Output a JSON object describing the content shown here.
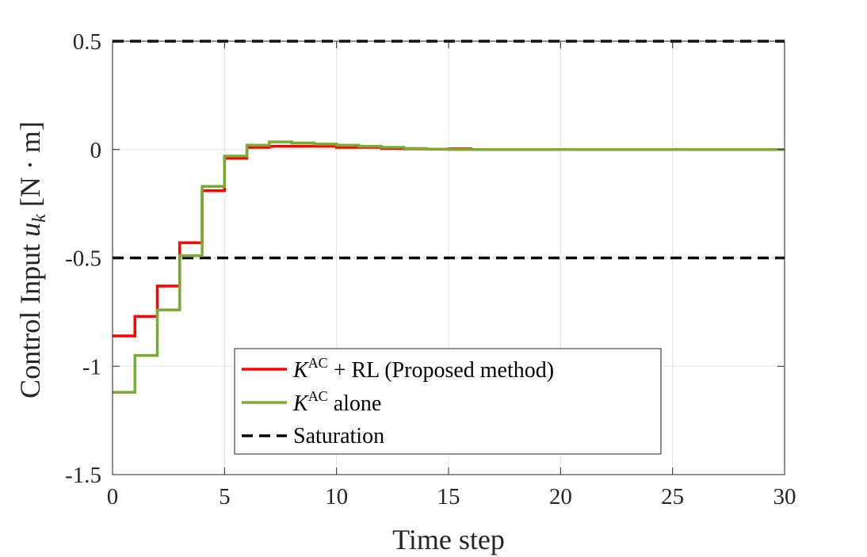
{
  "chart_data": {
    "type": "line",
    "line_shape": "step",
    "xlabel": "Time step",
    "ylabel": {
      "prefix": "Control Input ",
      "symbol": "u",
      "subscript": "k",
      "unit": " [N · m]"
    },
    "xlim": [
      0,
      30
    ],
    "ylim": [
      -1.5,
      0.5
    ],
    "x_ticks": [
      0,
      5,
      10,
      15,
      20,
      25,
      30
    ],
    "x_tick_labels": [
      "0",
      "5",
      "10",
      "15",
      "20",
      "25",
      "30"
    ],
    "y_ticks": [
      0.5,
      0,
      -0.5,
      -1,
      -1.5
    ],
    "y_tick_labels": [
      "0.5",
      "0",
      "-0.5",
      "-1",
      "-1.5"
    ],
    "grid": true,
    "legend_placement": "lower-center",
    "series": [
      {
        "name": "K^AC + RL (Proposed method)",
        "legend": {
          "symbol": "K",
          "superscript": "AC",
          "suffix": " + RL (Proposed method)"
        },
        "color": "#ff0000",
        "style": "solid",
        "x": [
          0,
          1,
          2,
          3,
          4,
          5,
          6,
          7,
          8,
          9,
          10,
          11,
          12,
          13,
          14,
          15,
          16,
          17,
          18,
          19,
          20,
          21,
          22,
          23,
          24,
          25,
          26,
          27,
          28,
          29,
          30
        ],
        "y": [
          -0.86,
          -0.77,
          -0.63,
          -0.43,
          -0.19,
          -0.04,
          0.01,
          0.015,
          0.015,
          0.015,
          0.01,
          0.01,
          0.005,
          0.003,
          0.002,
          0.003,
          0,
          0,
          0,
          0,
          0,
          0,
          0,
          0,
          0,
          0,
          0,
          0,
          0,
          0,
          0
        ]
      },
      {
        "name": "K^AC alone",
        "legend": {
          "symbol": "K",
          "superscript": "AC",
          "suffix": " alone"
        },
        "color": "#77ac30",
        "style": "solid",
        "x": [
          0,
          1,
          2,
          3,
          4,
          5,
          6,
          7,
          8,
          9,
          10,
          11,
          12,
          13,
          14,
          15,
          16,
          17,
          18,
          19,
          20,
          21,
          22,
          23,
          24,
          25,
          26,
          27,
          28,
          29,
          30
        ],
        "y": [
          -1.12,
          -0.95,
          -0.74,
          -0.49,
          -0.17,
          -0.03,
          0.02,
          0.035,
          0.03,
          0.025,
          0.02,
          0.015,
          0.01,
          0.005,
          0.002,
          0,
          0,
          0,
          0,
          0,
          0,
          0,
          0,
          0,
          0,
          0,
          0,
          0,
          0,
          0,
          0
        ]
      },
      {
        "name": "Saturation",
        "legend": {
          "symbol": "",
          "superscript": "",
          "suffix": "Saturation"
        },
        "color": "#000000",
        "style": "dashed",
        "levels": [
          0.5,
          -0.5
        ],
        "x": [
          0,
          30
        ]
      }
    ]
  }
}
